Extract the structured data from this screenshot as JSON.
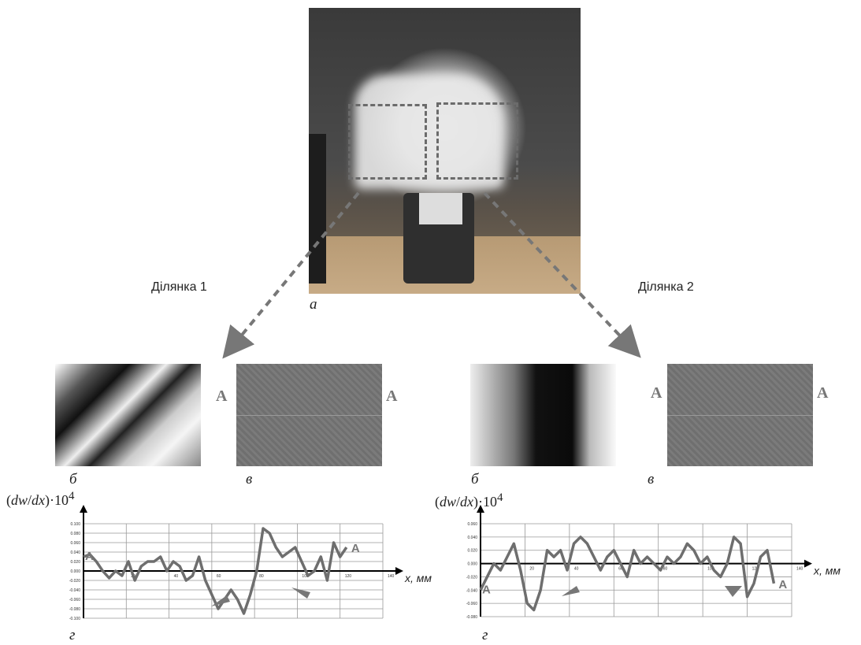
{
  "panels": {
    "a": "а",
    "region1": "Ділянка 1",
    "region2": "Ділянка 2",
    "b": "б",
    "v": "в",
    "g": "г"
  },
  "section_marker": "A",
  "chart_data": [
    {
      "type": "line",
      "title": "",
      "ylabel": "(dw/dx)·10^4",
      "xlabel": "x, мм",
      "xlim": [
        0,
        140
      ],
      "ylim": [
        -0.1,
        0.1
      ],
      "xticks": [
        0,
        20,
        40,
        60,
        80,
        100,
        120,
        140
      ],
      "yticks": [
        -0.1,
        -0.08,
        -0.06,
        -0.04,
        -0.02,
        0.0,
        0.02,
        0.04,
        0.06,
        0.08,
        0.1
      ],
      "ytick_labels": [
        "-0.100",
        "-0.080",
        "-0.060",
        "-0.040",
        "-0.020",
        "0.000",
        "0.020",
        "0.040",
        "0.060",
        "0.080",
        "0.100"
      ],
      "series": [
        {
          "x": [
            0,
            3,
            6,
            9,
            12,
            15,
            18,
            21,
            24,
            27,
            30,
            33,
            36,
            39,
            42,
            45,
            48,
            51,
            54,
            57,
            60,
            63,
            66,
            69,
            72,
            75,
            78,
            81,
            84,
            87,
            90,
            93,
            96,
            99,
            102,
            105,
            108,
            111,
            114,
            117,
            120,
            123
          ],
          "values": [
            0.03,
            0.035,
            0.02,
            0.0,
            -0.015,
            0.0,
            -0.01,
            0.02,
            -0.02,
            0.01,
            0.02,
            0.02,
            0.03,
            0.0,
            0.02,
            0.01,
            -0.02,
            -0.01,
            0.03,
            -0.02,
            -0.05,
            -0.08,
            -0.06,
            -0.04,
            -0.06,
            -0.09,
            -0.05,
            0.0,
            0.09,
            0.08,
            0.05,
            0.03,
            0.04,
            0.05,
            0.02,
            -0.01,
            0.0,
            0.03,
            -0.02,
            0.06,
            0.03,
            0.05
          ]
        }
      ]
    },
    {
      "type": "line",
      "title": "",
      "ylabel": "(dw/dx)·10^4",
      "xlabel": "x, мм",
      "xlim": [
        0,
        140
      ],
      "ylim": [
        -0.08,
        0.06
      ],
      "xticks": [
        0,
        20,
        40,
        60,
        80,
        100,
        120,
        140
      ],
      "yticks": [
        -0.08,
        -0.06,
        -0.04,
        -0.02,
        0.0,
        0.02,
        0.04,
        0.06
      ],
      "ytick_labels": [
        "-0.080",
        "-0.060",
        "-0.040",
        "-0.020",
        "0.000",
        "0.020",
        "0.040",
        "0.060"
      ],
      "series": [
        {
          "x": [
            0,
            3,
            6,
            9,
            12,
            15,
            18,
            21,
            24,
            27,
            30,
            33,
            36,
            39,
            42,
            45,
            48,
            51,
            54,
            57,
            60,
            63,
            66,
            69,
            72,
            75,
            78,
            81,
            84,
            87,
            90,
            93,
            96,
            99,
            102,
            105,
            108,
            111,
            114,
            117,
            120,
            123,
            126,
            129,
            132
          ],
          "values": [
            -0.04,
            -0.02,
            0.0,
            -0.01,
            0.01,
            0.03,
            -0.01,
            -0.06,
            -0.07,
            -0.04,
            0.02,
            0.01,
            0.02,
            -0.01,
            0.03,
            0.04,
            0.03,
            0.01,
            -0.01,
            0.01,
            0.02,
            0.0,
            -0.02,
            0.02,
            0.0,
            0.01,
            0.0,
            -0.01,
            0.01,
            0.0,
            0.01,
            0.03,
            0.02,
            0.0,
            0.01,
            -0.01,
            -0.02,
            0.0,
            0.04,
            0.03,
            -0.05,
            -0.03,
            0.01,
            0.02,
            -0.03
          ]
        }
      ]
    }
  ]
}
